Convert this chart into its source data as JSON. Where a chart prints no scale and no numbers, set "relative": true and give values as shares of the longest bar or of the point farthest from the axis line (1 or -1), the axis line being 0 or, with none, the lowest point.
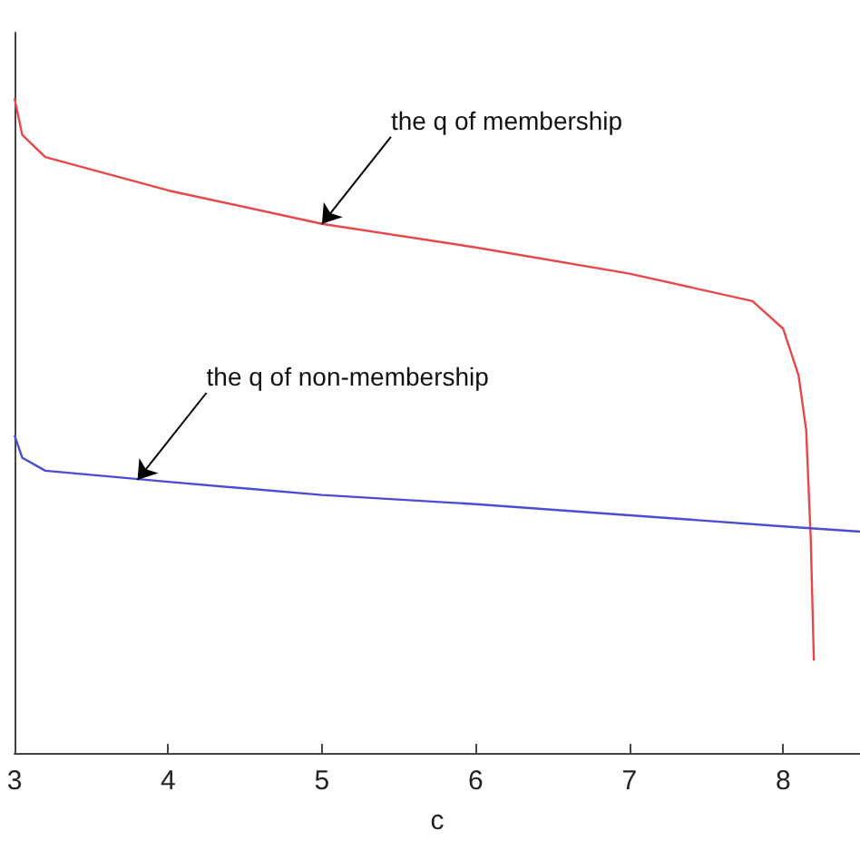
{
  "chart_data": {
    "type": "line",
    "xlabel": "c",
    "relative": true,
    "xlim": [
      3,
      8.5
    ],
    "xticks": [
      3,
      4,
      5,
      6,
      7,
      8
    ],
    "grid": false,
    "marker": "none",
    "line_style": "solid",
    "series": [
      {
        "color": "#e8474a",
        "x": [
          3,
          3.05,
          3.2,
          4,
          5,
          6,
          7,
          7.8,
          8.0,
          8.1,
          8.15,
          8.18,
          8.2
        ],
        "values": [
          1.0,
          0.944,
          0.91,
          0.859,
          0.808,
          0.772,
          0.732,
          0.69,
          0.648,
          0.577,
          0.493,
          0.324,
          0.141
        ]
      },
      {
        "color": "#4b4bd6",
        "x": [
          3,
          3.05,
          3.2,
          4,
          5,
          6,
          7,
          8,
          8.5
        ],
        "values": [
          0.485,
          0.451,
          0.431,
          0.414,
          0.394,
          0.38,
          0.363,
          0.346,
          0.338
        ]
      }
    ],
    "annotations": [
      {
        "text": "the q of membership",
        "x": 5,
        "y": 0.808
      },
      {
        "text": "the q of non-membership",
        "x": 3.8,
        "y": 0.417
      }
    ]
  }
}
